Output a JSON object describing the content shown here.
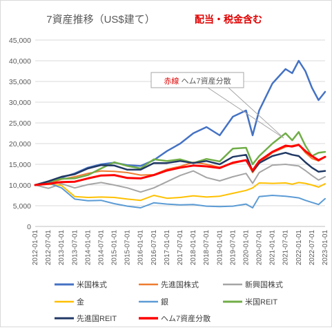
{
  "chart_data": {
    "type": "line",
    "title": "7資産推移（US$建て）",
    "subtitle": "配当・税金含む",
    "subtitle_color": "#e00000",
    "annotation": "赤線 ヘム7資産分散",
    "annotation_parts": [
      {
        "text": "赤線",
        "color": "#e00000"
      },
      {
        "text": " ヘム7資産分散",
        "color": "#595959"
      }
    ],
    "ylim": [
      0,
      45000
    ],
    "yticks": [
      0,
      5000,
      10000,
      15000,
      20000,
      25000,
      30000,
      35000,
      40000,
      45000
    ],
    "ytick_labels": [
      "0",
      "5,000",
      "10,000",
      "15,000",
      "20,000",
      "25,000",
      "30,000",
      "35,000",
      "40,000",
      "45,000"
    ],
    "grid": true,
    "legend_position": "bottom",
    "xtick_labels": [
      "2012-01-01",
      "2012-07-01",
      "2013-01-01",
      "2013-07-01",
      "2014-01-01",
      "2014-07-01",
      "2015-01-01",
      "2015-07-01",
      "2016-01-01",
      "2016-07-01",
      "2017-01-01",
      "2017-07-01",
      "2018-01-01",
      "2018-07-01",
      "2019-01-01",
      "2019-07-01",
      "2020-01-01",
      "2020-07-01",
      "2021-01-01",
      "2021-07-01",
      "2022-01-01",
      "2022-07-01",
      "2023-01-01"
    ],
    "x_unit": "half-year period index (0 = 2012-01-01, 22 = 2023-01-01)",
    "series": [
      {
        "name": "米国株式",
        "color": "#4472c4",
        "width": 2.5,
        "x": [
          0,
          1,
          2,
          3,
          4,
          5,
          6,
          7,
          8,
          9,
          10,
          11,
          12,
          13,
          14,
          15,
          16,
          16.5,
          17,
          18,
          19,
          19.5,
          20,
          20.5,
          21,
          21.5,
          22
        ],
        "y": [
          10000,
          10600,
          11800,
          12800,
          14200,
          15000,
          15400,
          14800,
          14600,
          16000,
          18200,
          20000,
          22500,
          24000,
          22000,
          26500,
          28000,
          22000,
          28000,
          34500,
          38000,
          37000,
          40000,
          37500,
          33500,
          30500,
          32500
        ]
      },
      {
        "name": "先進国株式",
        "color": "#ed7d31",
        "width": 2,
        "x": [
          0,
          1,
          2,
          3,
          4,
          5,
          6,
          7,
          8,
          9,
          10,
          11,
          12,
          13,
          14,
          15,
          16,
          16.5,
          17,
          18,
          19,
          19.5,
          20,
          20.5,
          21,
          21.5,
          22
        ],
        "y": [
          10000,
          10200,
          11400,
          12000,
          12800,
          13400,
          13300,
          13000,
          12400,
          12500,
          13800,
          14500,
          15500,
          15000,
          14300,
          15200,
          16000,
          13000,
          15200,
          17800,
          19200,
          19500,
          19800,
          17800,
          16400,
          15800,
          16800
        ]
      },
      {
        "name": "新興国株式",
        "color": "#a5a5a5",
        "width": 2,
        "x": [
          0,
          1,
          2,
          3,
          4,
          5,
          6,
          7,
          8,
          9,
          10,
          11,
          12,
          13,
          14,
          15,
          16,
          16.5,
          17,
          18,
          19,
          19.5,
          20,
          20.5,
          21,
          21.5,
          22
        ],
        "y": [
          10000,
          9200,
          10300,
          9300,
          10100,
          10600,
          10000,
          9300,
          8300,
          9300,
          10800,
          12300,
          13400,
          11800,
          11000,
          12000,
          12800,
          10400,
          13000,
          14800,
          15000,
          14800,
          14600,
          13500,
          12300,
          11200,
          12000
        ]
      },
      {
        "name": "金",
        "color": "#ffc000",
        "width": 2,
        "x": [
          0,
          1,
          2,
          3,
          4,
          5,
          6,
          7,
          8,
          9,
          10,
          11,
          12,
          13,
          14,
          15,
          16,
          16.5,
          17,
          18,
          19,
          19.5,
          20,
          20.5,
          21,
          21.5,
          22
        ],
        "y": [
          10000,
          10200,
          9900,
          7200,
          7000,
          7100,
          7000,
          6600,
          6300,
          7500,
          6800,
          7000,
          7400,
          7100,
          7300,
          8000,
          8700,
          9300,
          10500,
          10400,
          10500,
          10200,
          10600,
          10400,
          10000,
          9500,
          10300
        ]
      },
      {
        "name": "銀",
        "color": "#5b9bd5",
        "width": 2,
        "x": [
          0,
          1,
          2,
          3,
          4,
          5,
          6,
          7,
          8,
          9,
          10,
          11,
          12,
          13,
          14,
          15,
          16,
          16.5,
          17,
          18,
          19,
          19.5,
          20,
          20.5,
          21,
          21.5,
          22
        ],
        "y": [
          10000,
          10500,
          9300,
          6600,
          6200,
          6300,
          5500,
          4900,
          4500,
          5700,
          5400,
          5200,
          5300,
          4900,
          4800,
          4900,
          5400,
          4500,
          7200,
          7500,
          7300,
          7100,
          6900,
          6300,
          5800,
          5300,
          6700
        ]
      },
      {
        "name": "米国REIT",
        "color": "#70ad47",
        "width": 2.5,
        "x": [
          0,
          1,
          2,
          3,
          4,
          5,
          6,
          7,
          8,
          9,
          10,
          11,
          12,
          13,
          14,
          15,
          16,
          16.5,
          17,
          18,
          19,
          19.5,
          20,
          20.5,
          21,
          21.5,
          22
        ],
        "y": [
          10000,
          10800,
          11500,
          11600,
          12400,
          14000,
          15500,
          14600,
          14000,
          16200,
          15800,
          16200,
          15300,
          16300,
          15700,
          18800,
          19000,
          15000,
          17000,
          20000,
          22500,
          20800,
          22800,
          19500,
          17000,
          17800,
          18000
        ]
      },
      {
        "name": "先進国REIT",
        "color": "#203864",
        "width": 2.5,
        "x": [
          0,
          1,
          2,
          3,
          4,
          5,
          6,
          7,
          8,
          9,
          10,
          11,
          12,
          13,
          14,
          15,
          16,
          16.5,
          17,
          18,
          19,
          19.5,
          20,
          20.5,
          21,
          21.5,
          22
        ],
        "y": [
          10000,
          10900,
          12000,
          12600,
          14000,
          14800,
          14700,
          13700,
          13700,
          15300,
          15300,
          15800,
          15300,
          15800,
          15000,
          16800,
          17300,
          13300,
          15300,
          17000,
          17800,
          17300,
          17000,
          15500,
          14200,
          13200,
          13400
        ]
      },
      {
        "name": "ヘム7資産分散",
        "color": "#ff0000",
        "width": 3,
        "x": [
          0,
          1,
          2,
          3,
          4,
          5,
          6,
          7,
          8,
          9,
          10,
          11,
          12,
          13,
          14,
          15,
          16,
          16.5,
          17,
          18,
          19,
          19.5,
          20,
          20.5,
          21,
          21.5,
          22
        ],
        "y": [
          10000,
          10300,
          10700,
          10800,
          11600,
          12300,
          12400,
          11700,
          11600,
          12400,
          13500,
          14200,
          14700,
          14500,
          14100,
          15400,
          16000,
          13500,
          15800,
          18000,
          19500,
          19300,
          19700,
          18200,
          17000,
          16000,
          16800
        ]
      }
    ]
  }
}
